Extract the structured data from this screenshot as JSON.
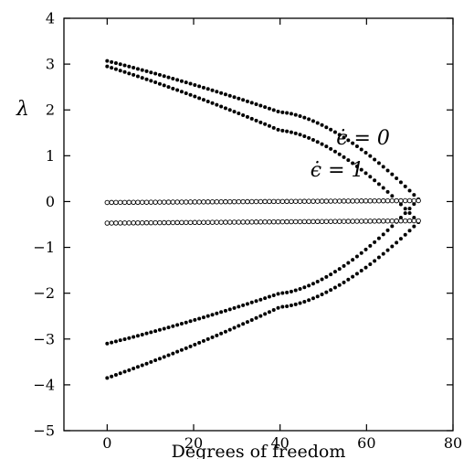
{
  "chart_data": {
    "type": "scatter",
    "xlabel": "Degrees of freedom",
    "ylabel": "λ",
    "xlim": [
      -10,
      80
    ],
    "ylim": [
      -5,
      4
    ],
    "xticks": [
      0,
      20,
      40,
      60,
      80
    ],
    "yticks": [
      -5,
      -4,
      -3,
      -2,
      -1,
      0,
      1,
      2,
      3,
      4
    ],
    "grid": false,
    "annotations": [
      {
        "text": "ϵ̇ = 0",
        "x": 53,
        "y": 1.25
      },
      {
        "text": "ϵ̇ = 1",
        "x": 47,
        "y": 0.55
      }
    ],
    "series": [
      {
        "marker": "filled",
        "x_start": 0,
        "x_end": 72,
        "count": 72,
        "y_start": 3.07,
        "y_mid_x": 40,
        "y_mid": 1.95,
        "y_end": 0.05
      },
      {
        "marker": "filled",
        "x_start": 0,
        "x_end": 72,
        "count": 72,
        "y_start": 2.95,
        "y_mid_x": 40,
        "y_mid": 1.55,
        "y_end": -0.45
      },
      {
        "marker": "filled",
        "x_start": 0,
        "x_end": 72,
        "count": 72,
        "y_start": -3.1,
        "y_mid_x": 40,
        "y_mid": -2.0,
        "y_end": 0.05
      },
      {
        "marker": "filled",
        "x_start": 0,
        "x_end": 72,
        "count": 72,
        "y_start": -3.85,
        "y_mid_x": 40,
        "y_mid": -2.3,
        "y_end": -0.45
      },
      {
        "marker": "open",
        "x_start": 0,
        "x_end": 72,
        "count": 72,
        "y_start": -0.02,
        "y_end": 0.02
      },
      {
        "marker": "open",
        "x_start": 0,
        "x_end": 72,
        "count": 72,
        "y_start": -0.47,
        "y_end": -0.42
      }
    ]
  }
}
